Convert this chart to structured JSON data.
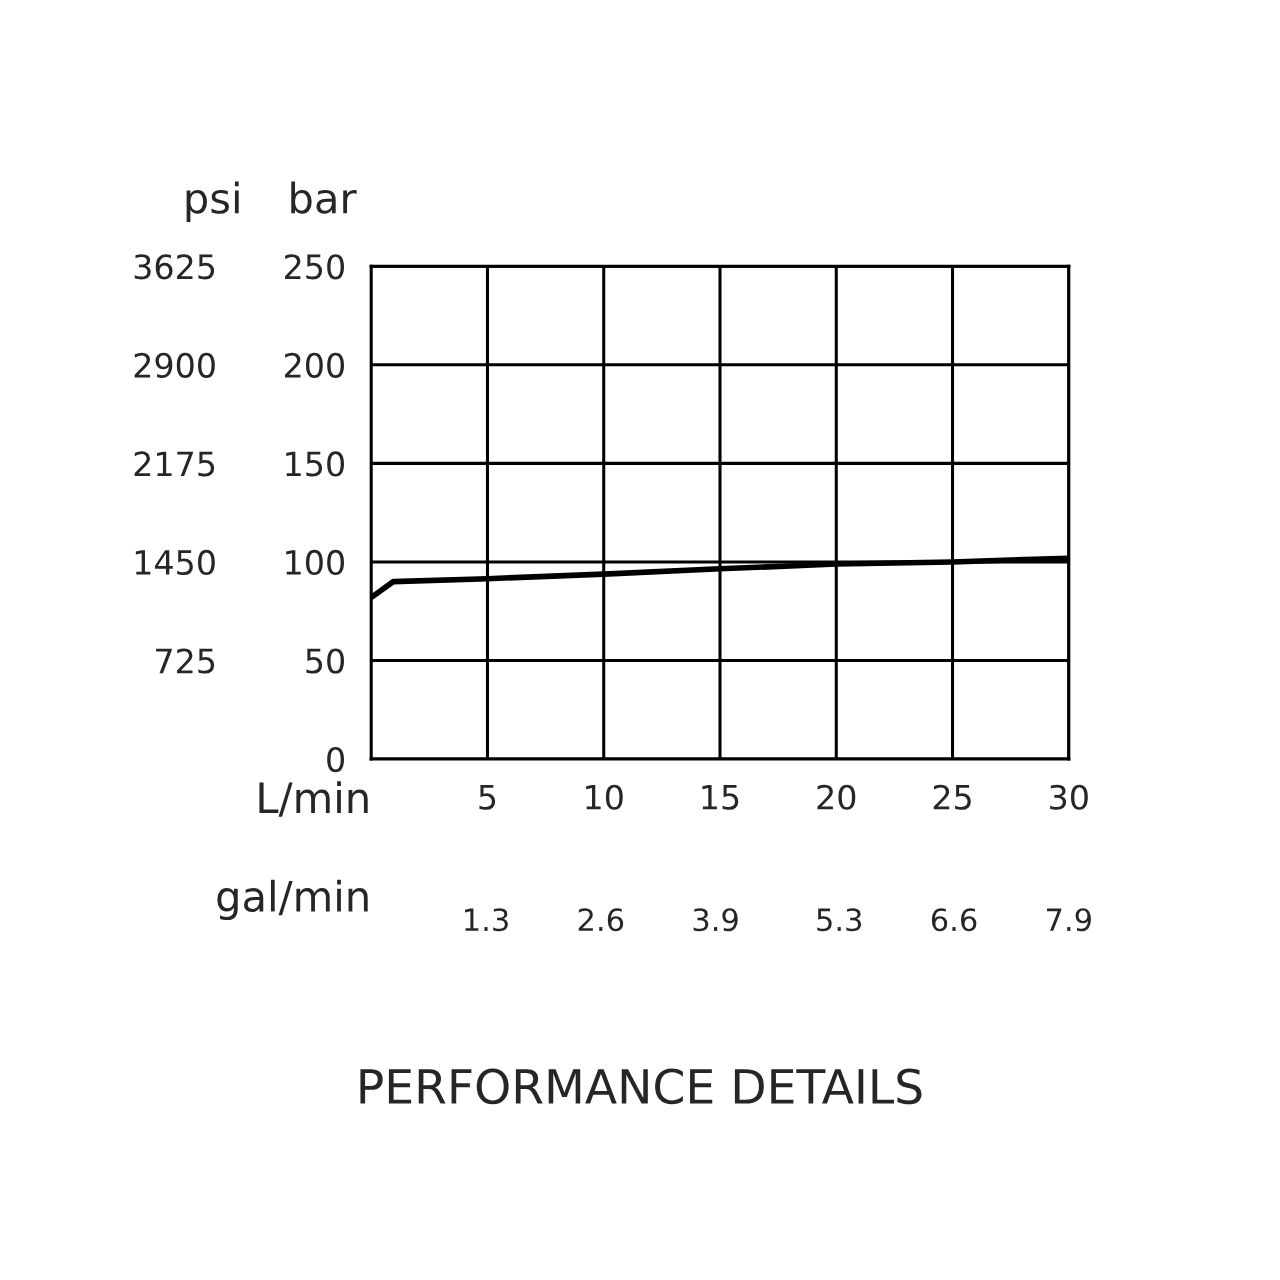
{
  "chart_data": {
    "type": "line",
    "title": "PERFORMANCE DETAILS",
    "xlabel": "L/min",
    "ylabel": "bar",
    "y2label": "psi",
    "x2label": "gal/min",
    "x": [
      0,
      0.95,
      5,
      10,
      15,
      20,
      25,
      30
    ],
    "series": [
      {
        "color": "#000000",
        "values": [
          82,
          90,
          91.5,
          93.8,
          96.5,
          98.9,
          100,
          101.9
        ]
      }
    ],
    "xlim": [
      0,
      30
    ],
    "xticks": [
      5,
      10,
      15,
      20,
      25,
      30
    ],
    "x2lim": [
      0,
      7.9
    ],
    "x2ticks": [
      1.3,
      2.6,
      3.9,
      5.3,
      6.6,
      7.9
    ],
    "ylim": [
      0,
      250
    ],
    "yticks": [
      0,
      50,
      100,
      150,
      200,
      250
    ],
    "y2lim": [
      0,
      3625
    ],
    "y2ticks": [
      725,
      1450,
      2175,
      2900,
      3625
    ],
    "grid": true,
    "legend": false,
    "marker": "none",
    "line_style": "solid"
  }
}
